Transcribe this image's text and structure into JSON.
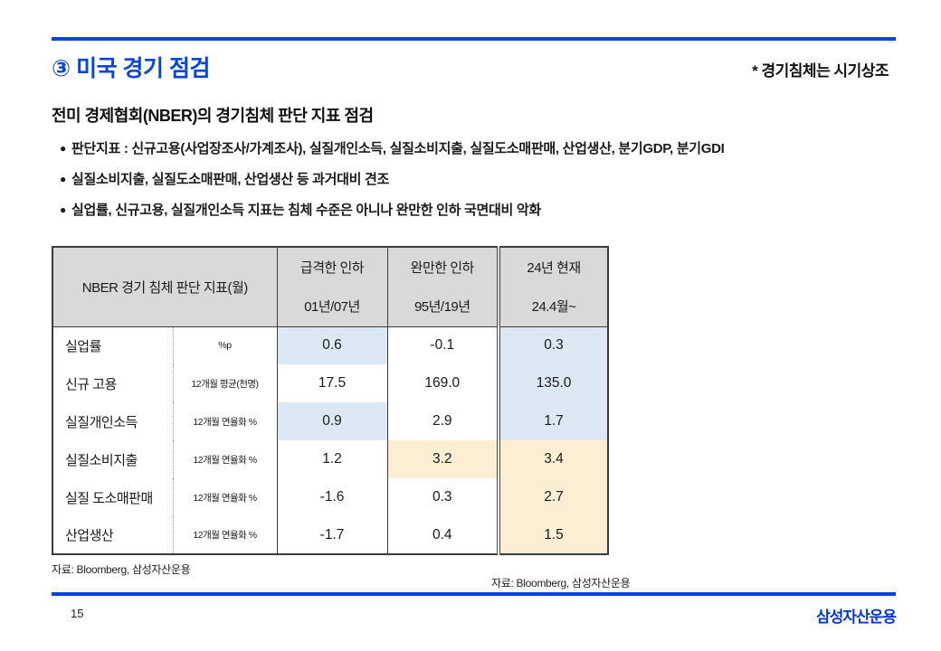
{
  "header": {
    "title": "③ 미국 경기 점검",
    "annotation": "* 경기침체는 시기상조",
    "subtitle": "전미 경제협회(NBER)의 경기침체 판단 지표 점검"
  },
  "bullets": [
    "판단지표 : 신규고용(사업장조사/가계조사),  실질개인소득,  실질소비지출,  실질도소매판매,  산업생산,  분기GDP, 분기GDI",
    "실질소비지출,  실질도소매판매,  산업생산 등 과거대비 견조",
    "실업률, 신규고용, 실질개인소득 지표는 침체 수준은 아니나 완만한 인하 국면대비 악화"
  ],
  "table": {
    "corner_header": "NBER 경기 침체 판단 지표(월)",
    "columns": [
      {
        "label": "급격한 인하",
        "period": "01년/07년"
      },
      {
        "label": "완만한 인하",
        "period": "95년/19년"
      },
      {
        "label": "24년 현재",
        "period": "24.4월~"
      }
    ],
    "rows": [
      {
        "name": "실업률",
        "unit": "%p",
        "values": [
          "0.6",
          "-0.1",
          "0.3"
        ],
        "shades": [
          "blue",
          "none",
          "blue"
        ]
      },
      {
        "name": "신규 고용",
        "unit": "12개월 평균(천명)",
        "values": [
          "17.5",
          "169.0",
          "135.0"
        ],
        "shades": [
          "none",
          "none",
          "blue"
        ]
      },
      {
        "name": "실질개인소득",
        "unit": "12개월 연율화 %",
        "values": [
          "0.9",
          "2.9",
          "1.7"
        ],
        "shades": [
          "blue",
          "none",
          "blue"
        ]
      },
      {
        "name": "실질소비지출",
        "unit": "12개월 연율화 %",
        "values": [
          "1.2",
          "3.2",
          "3.4"
        ],
        "shades": [
          "none",
          "yellow",
          "yellow"
        ]
      },
      {
        "name": "실질 도소매판매",
        "unit": "12개월 연율화 %",
        "values": [
          "-1.6",
          "0.3",
          "2.7"
        ],
        "shades": [
          "none",
          "none",
          "yellow"
        ]
      },
      {
        "name": "산업생산",
        "unit": "12개월 연율화 %",
        "values": [
          "-1.7",
          "0.4",
          "1.5"
        ],
        "shades": [
          "none",
          "none",
          "yellow"
        ]
      }
    ]
  },
  "footnotes": {
    "left": "자료: Bloomberg, 삼성자산운용",
    "right": "자료: Bloomberg, 삼성자산운용"
  },
  "footer": {
    "page_number": "15",
    "logo": "삼성자산운용"
  },
  "colors": {
    "accent_blue": "#0546d6",
    "header_gray": "#d9d9d9",
    "cell_blue": "#dce9f5",
    "cell_yellow": "#fbeed3"
  }
}
